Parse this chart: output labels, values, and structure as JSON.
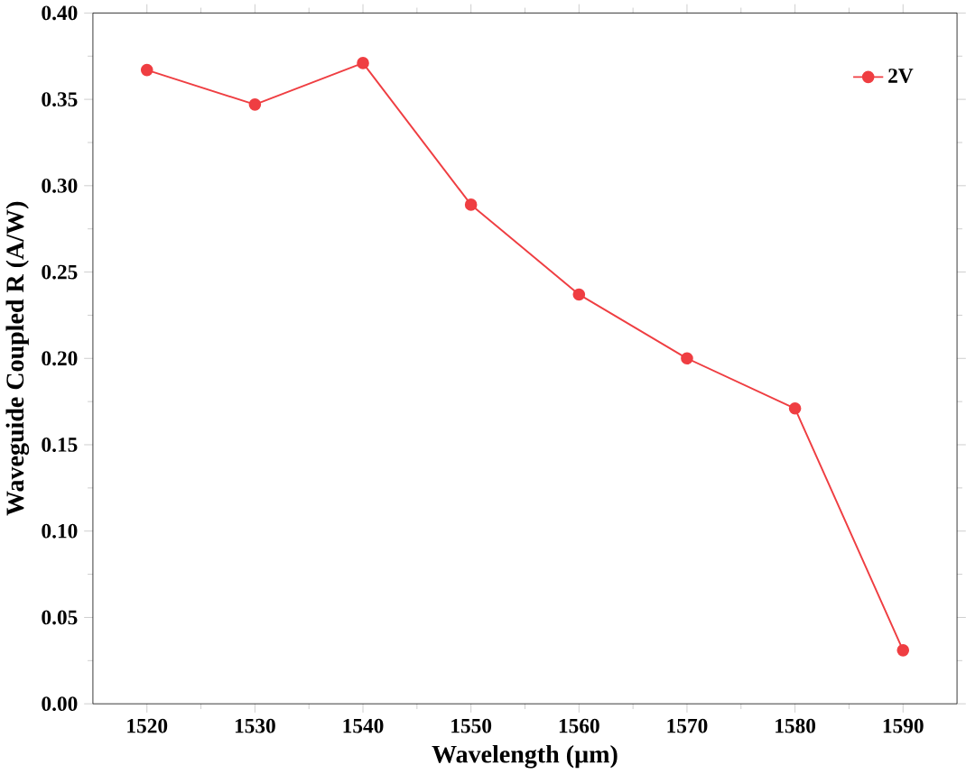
{
  "chart_data": {
    "type": "line",
    "xlabel": "Wavelength (µm)",
    "ylabel": "Waveguide Coupled R (A/W)",
    "x": [
      1520,
      1530,
      1540,
      1550,
      1560,
      1570,
      1580,
      1590
    ],
    "series": [
      {
        "name": "2V",
        "color": "#ef3e42",
        "values": [
          0.367,
          0.347,
          0.371,
          0.289,
          0.237,
          0.2,
          0.171,
          0.031
        ]
      }
    ],
    "xlim": [
      1515,
      1595
    ],
    "xticks": [
      1520,
      1530,
      1540,
      1550,
      1560,
      1570,
      1580,
      1590
    ],
    "ylim": [
      0,
      0.4
    ],
    "yticks": [
      {
        "value": 0,
        "label": "0.00"
      },
      {
        "value": 0.05,
        "label": "0.05"
      },
      {
        "value": 0.1,
        "label": "0.10"
      },
      {
        "value": 0.15,
        "label": "0.15"
      },
      {
        "value": 0.2,
        "label": "0.20"
      },
      {
        "value": 0.25,
        "label": "0.25"
      },
      {
        "value": 0.3,
        "label": "0.30"
      },
      {
        "value": 0.35,
        "label": "0.35"
      },
      {
        "value": 0.4,
        "label": "0.40"
      }
    ],
    "legend": "top right",
    "marker": "circle",
    "line_style": "solid",
    "grid": false
  }
}
